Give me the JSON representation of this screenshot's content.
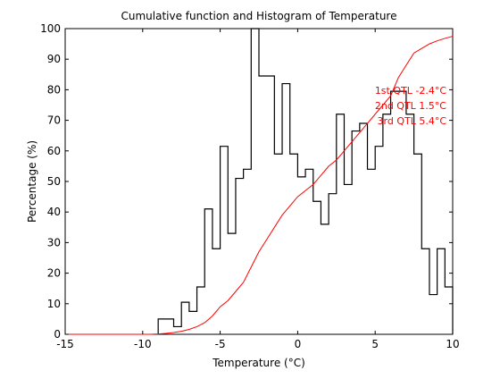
{
  "chart_data": {
    "type": "line",
    "title": "Cumulative function and Histogram of Temperature",
    "xlabel": "Temperature (°C)",
    "ylabel": "Percentage (%)",
    "xlim": [
      -15,
      10
    ],
    "ylim": [
      0,
      100
    ],
    "grid": false,
    "legend": "none",
    "x_ticks": [
      -15,
      -10,
      -5,
      0,
      5,
      10
    ],
    "y_ticks": [
      0,
      10,
      20,
      30,
      40,
      50,
      60,
      70,
      80,
      90,
      100
    ],
    "series": [
      {
        "style": "stairs",
        "color": "#000000",
        "bins": [
          {
            "x0": -9.0,
            "x1": -8.0,
            "y": 5
          },
          {
            "x0": -8.0,
            "x1": -7.5,
            "y": 2.5
          },
          {
            "x0": -7.5,
            "x1": -7.0,
            "y": 10.5
          },
          {
            "x0": -7.0,
            "x1": -6.5,
            "y": 7.5
          },
          {
            "x0": -6.5,
            "x1": -6.0,
            "y": 15.5
          },
          {
            "x0": -6.0,
            "x1": -5.5,
            "y": 41
          },
          {
            "x0": -5.5,
            "x1": -5.0,
            "y": 28
          },
          {
            "x0": -5.0,
            "x1": -4.5,
            "y": 61.5
          },
          {
            "x0": -4.5,
            "x1": -4.0,
            "y": 33
          },
          {
            "x0": -4.0,
            "x1": -3.5,
            "y": 51
          },
          {
            "x0": -3.5,
            "x1": -3.0,
            "y": 54
          },
          {
            "x0": -3.0,
            "x1": -2.5,
            "y": 100
          },
          {
            "x0": -2.5,
            "x1": -1.5,
            "y": 84.5
          },
          {
            "x0": -1.5,
            "x1": -1.0,
            "y": 59
          },
          {
            "x0": -1.0,
            "x1": -0.5,
            "y": 82
          },
          {
            "x0": -0.5,
            "x1": 0.0,
            "y": 59
          },
          {
            "x0": 0.0,
            "x1": 0.5,
            "y": 51.5
          },
          {
            "x0": 0.5,
            "x1": 1.0,
            "y": 54
          },
          {
            "x0": 1.0,
            "x1": 1.5,
            "y": 43.5
          },
          {
            "x0": 1.5,
            "x1": 2.0,
            "y": 36
          },
          {
            "x0": 2.0,
            "x1": 2.5,
            "y": 46
          },
          {
            "x0": 2.5,
            "x1": 3.0,
            "y": 72
          },
          {
            "x0": 3.0,
            "x1": 3.5,
            "y": 49
          },
          {
            "x0": 3.5,
            "x1": 4.0,
            "y": 66.5
          },
          {
            "x0": 4.0,
            "x1": 4.5,
            "y": 69
          },
          {
            "x0": 4.5,
            "x1": 5.0,
            "y": 54
          },
          {
            "x0": 5.0,
            "x1": 5.5,
            "y": 61.5
          },
          {
            "x0": 5.5,
            "x1": 6.0,
            "y": 72
          },
          {
            "x0": 6.0,
            "x1": 7.0,
            "y": 79.5
          },
          {
            "x0": 7.0,
            "x1": 7.5,
            "y": 72
          },
          {
            "x0": 7.5,
            "x1": 8.0,
            "y": 59
          },
          {
            "x0": 8.0,
            "x1": 8.5,
            "y": 28
          },
          {
            "x0": 8.5,
            "x1": 9.0,
            "y": 13
          },
          {
            "x0": 9.0,
            "x1": 9.5,
            "y": 28
          },
          {
            "x0": 9.5,
            "x1": 10.0,
            "y": 15.5
          }
        ]
      },
      {
        "style": "line",
        "color": "#ff0000",
        "x": [
          -15,
          -10,
          -9.5,
          -9,
          -8.5,
          -8,
          -7.5,
          -7,
          -6.5,
          -6,
          -5.5,
          -5,
          -4.5,
          -4,
          -3.5,
          -3,
          -2.5,
          -2,
          -1.5,
          -1,
          -0.5,
          0,
          0.5,
          1,
          1.5,
          2,
          2.5,
          3,
          3.5,
          4,
          4.5,
          5,
          5.5,
          6,
          6.5,
          7,
          7.5,
          8,
          8.5,
          9,
          9.5,
          10
        ],
        "y": [
          0,
          0,
          0,
          0.1,
          0.3,
          0.6,
          1,
          1.6,
          2.5,
          3.8,
          6,
          9,
          11,
          14,
          17,
          22,
          27,
          31,
          35,
          39,
          42,
          45,
          47,
          49,
          52,
          55,
          57,
          60,
          63,
          66,
          69,
          72,
          75,
          78,
          84,
          88,
          92,
          93.5,
          95,
          96,
          96.8,
          97.5
        ]
      }
    ],
    "annotations": [
      {
        "text": "1st QTL -2.4°C",
        "color": "#ff0000"
      },
      {
        "text": "2nd QTL  1.5°C",
        "color": "#ff0000"
      },
      {
        "text": "3rd QTL  5.4°C",
        "color": "#ff0000"
      }
    ]
  }
}
